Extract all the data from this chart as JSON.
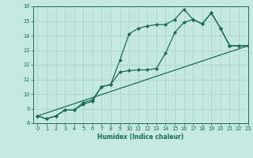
{
  "xlabel": "Humidex (Indice chaleur)",
  "xlim": [
    -0.5,
    23
  ],
  "ylim": [
    8,
    16
  ],
  "xticks": [
    0,
    1,
    2,
    3,
    4,
    5,
    6,
    7,
    8,
    9,
    10,
    11,
    12,
    13,
    14,
    15,
    16,
    17,
    18,
    19,
    20,
    21,
    22,
    23
  ],
  "yticks": [
    8,
    9,
    10,
    11,
    12,
    13,
    14,
    15,
    16
  ],
  "bg_color": "#c5e8e0",
  "grid_color": "#afd8ce",
  "line_color": "#1a6b5a",
  "line1_x": [
    0,
    1,
    2,
    3,
    4,
    5,
    6,
    7,
    8,
    9,
    10,
    11,
    12,
    13,
    14,
    15,
    16,
    17,
    18,
    19,
    20,
    21,
    22,
    23
  ],
  "line1_y": [
    8.5,
    8.3,
    8.5,
    8.9,
    8.9,
    9.4,
    9.6,
    10.5,
    10.65,
    12.3,
    14.1,
    14.5,
    14.65,
    14.75,
    14.75,
    15.1,
    15.8,
    15.1,
    14.8,
    15.55,
    14.5,
    13.3,
    13.3,
    13.3
  ],
  "line2_x": [
    0,
    1,
    2,
    3,
    4,
    5,
    6,
    7,
    8,
    9,
    10,
    11,
    12,
    13,
    14,
    15,
    16,
    17,
    18,
    19,
    20,
    21,
    22,
    23
  ],
  "line2_y": [
    8.5,
    8.3,
    8.5,
    8.9,
    8.9,
    9.3,
    9.5,
    10.5,
    10.65,
    11.5,
    11.6,
    11.65,
    11.65,
    11.75,
    12.8,
    14.2,
    14.9,
    15.1,
    14.8,
    15.55,
    14.5,
    13.3,
    13.3,
    13.3
  ],
  "line3_x": [
    0,
    23
  ],
  "line3_y": [
    8.5,
    13.3
  ]
}
